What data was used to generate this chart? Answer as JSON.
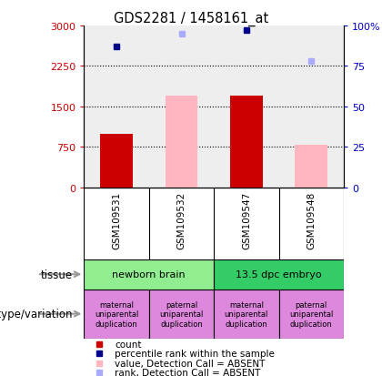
{
  "title": "GDS2281 / 1458161_at",
  "samples": [
    "GSM109531",
    "GSM109532",
    "GSM109547",
    "GSM109548"
  ],
  "left_ylim": [
    0,
    3000
  ],
  "left_yticks": [
    0,
    750,
    1500,
    2250,
    3000
  ],
  "right_ylim": [
    0,
    100
  ],
  "right_yticks": [
    0,
    25,
    50,
    75,
    100
  ],
  "count_values": [
    1000,
    null,
    1700,
    null
  ],
  "count_color": "#cc0000",
  "value_absent_values": [
    null,
    1700,
    null,
    800
  ],
  "value_absent_color": "#ffb6c1",
  "rank_present_values": [
    87,
    null,
    97,
    null
  ],
  "rank_present_color": "#00008b",
  "rank_absent_values": [
    null,
    95,
    null,
    78
  ],
  "rank_absent_color": "#aaaaff",
  "tissue_groups": [
    {
      "label": "newborn brain",
      "cols": [
        0,
        1
      ],
      "color": "#90ee90"
    },
    {
      "label": "13.5 dpc embryo",
      "cols": [
        2,
        3
      ],
      "color": "#33cc66"
    }
  ],
  "genotype_labels": [
    "maternal\nuniparental\nduplication",
    "paternal\nuniparental\nduplication",
    "maternal\nuniparental\nduplication",
    "paternal\nuniparental\nduplication"
  ],
  "genotype_color": "#dd88dd",
  "legend_items": [
    {
      "color": "#cc0000",
      "label": "count"
    },
    {
      "color": "#00008b",
      "label": "percentile rank within the sample"
    },
    {
      "color": "#ffb6c1",
      "label": "value, Detection Call = ABSENT"
    },
    {
      "color": "#aaaaff",
      "label": "rank, Detection Call = ABSENT"
    }
  ],
  "bar_width": 0.5,
  "left_ylabel_color": "#cc0000",
  "right_ylabel_color": "#0000cc",
  "background_plot": "#eeeeee",
  "background_label": "#cccccc",
  "arrow_color": "#999999"
}
